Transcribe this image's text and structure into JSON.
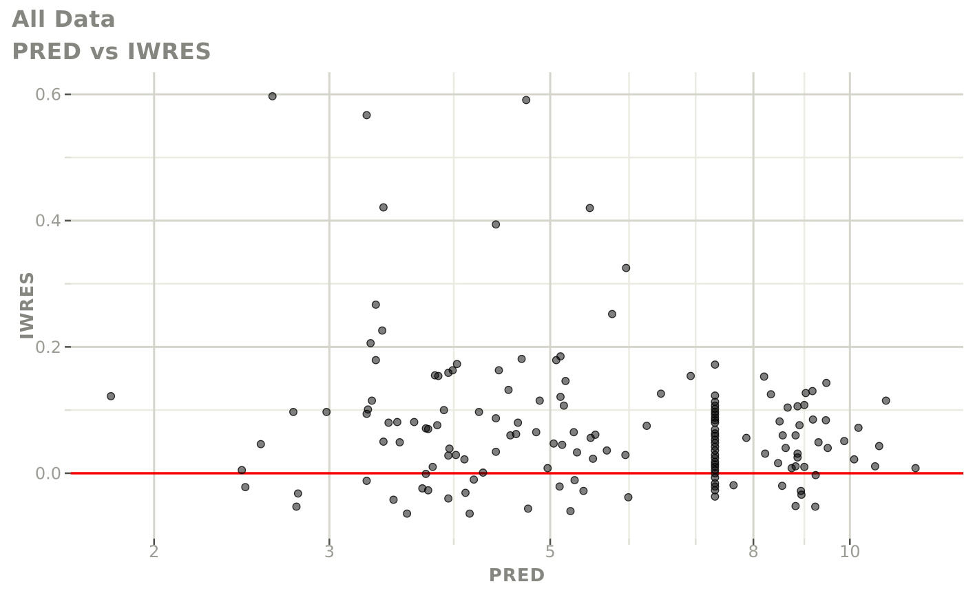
{
  "chart_data": {
    "type": "scatter",
    "title": "All Data",
    "subtitle": "PRED vs IWRES",
    "xlabel": "PRED",
    "ylabel": "IWRES",
    "x_scale": "log10",
    "xlim": [
      1.65,
      13.0
    ],
    "ylim": [
      -0.1035,
      0.635
    ],
    "grid": true,
    "legend": "none",
    "x_major_breaks": [
      2,
      3,
      5,
      8,
      10
    ],
    "x_tick_labels": [
      "2",
      "3",
      "5",
      "8",
      "10"
    ],
    "x_minor_breaks": [
      4,
      6,
      7,
      9
    ],
    "y_major_breaks": [
      0.0,
      0.2,
      0.4,
      0.6
    ],
    "y_tick_labels": [
      "0.0",
      "0.2",
      "0.4",
      "0.6"
    ],
    "y_minor_breaks": [
      0.1,
      0.3,
      0.5
    ],
    "reference_line": {
      "y": 0.0,
      "color": "#f80000"
    },
    "colors": {
      "background": "#ffffff",
      "title": "#868680",
      "tick_labels": "#9c9c94",
      "grid_major": "#d5d5cb",
      "grid_minor": "#ebebe1",
      "tick_major": "#4f4f49",
      "tick_minor": "#dfdfd4",
      "ref_line": "#f80000",
      "point": "#000000"
    },
    "point_style": {
      "radius": 5.3,
      "fill_opacity": 0.5,
      "stroke_opacity": 0.8,
      "stroke_width": 1.3
    },
    "points": [
      [
        2.63,
        0.597
      ],
      [
        4.73,
        0.591
      ],
      [
        3.27,
        0.567
      ],
      [
        3.4,
        0.421
      ],
      [
        5.48,
        0.42
      ],
      [
        4.41,
        0.394
      ],
      [
        5.96,
        0.325
      ],
      [
        3.34,
        0.267
      ],
      [
        1.81,
        0.122
      ],
      [
        2.76,
        0.097
      ],
      [
        2.98,
        0.097
      ],
      [
        2.56,
        0.046
      ],
      [
        2.45,
        0.005
      ],
      [
        2.47,
        -0.022
      ],
      [
        2.79,
        -0.032
      ],
      [
        2.78,
        -0.053
      ],
      [
        3.39,
        0.226
      ],
      [
        3.3,
        0.206
      ],
      [
        3.34,
        0.179
      ],
      [
        4.03,
        0.173
      ],
      [
        3.99,
        0.163
      ],
      [
        3.95,
        0.159
      ],
      [
        3.83,
        0.155
      ],
      [
        3.86,
        0.154
      ],
      [
        3.31,
        0.115
      ],
      [
        3.28,
        0.101
      ],
      [
        3.27,
        0.094
      ],
      [
        3.91,
        0.1
      ],
      [
        4.24,
        0.097
      ],
      [
        3.44,
        0.08
      ],
      [
        3.51,
        0.081
      ],
      [
        3.65,
        0.081
      ],
      [
        3.85,
        0.076
      ],
      [
        3.75,
        0.071
      ],
      [
        3.77,
        0.07
      ],
      [
        3.4,
        0.05
      ],
      [
        3.53,
        0.049
      ],
      [
        3.96,
        0.039
      ],
      [
        3.95,
        0.028
      ],
      [
        4.02,
        0.029
      ],
      [
        4.1,
        0.022
      ],
      [
        3.81,
        0.01
      ],
      [
        3.75,
        -0.001
      ],
      [
        3.27,
        -0.012
      ],
      [
        4.19,
        -0.01
      ],
      [
        4.28,
        0.001
      ],
      [
        3.72,
        -0.024
      ],
      [
        3.77,
        -0.027
      ],
      [
        4.11,
        -0.031
      ],
      [
        3.48,
        -0.042
      ],
      [
        3.95,
        -0.04
      ],
      [
        3.59,
        -0.064
      ],
      [
        4.15,
        -0.064
      ],
      [
        5.77,
        0.252
      ],
      [
        4.68,
        0.181
      ],
      [
        5.12,
        0.185
      ],
      [
        5.07,
        0.179
      ],
      [
        4.44,
        0.163
      ],
      [
        5.18,
        0.146
      ],
      [
        4.54,
        0.132
      ],
      [
        5.12,
        0.121
      ],
      [
        4.88,
        0.115
      ],
      [
        5.16,
        0.107
      ],
      [
        4.41,
        0.087
      ],
      [
        4.64,
        0.08
      ],
      [
        4.84,
        0.065
      ],
      [
        5.28,
        0.065
      ],
      [
        4.56,
        0.06
      ],
      [
        4.62,
        0.062
      ],
      [
        5.49,
        0.056
      ],
      [
        5.55,
        0.061
      ],
      [
        4.41,
        0.034
      ],
      [
        5.04,
        0.047
      ],
      [
        5.14,
        0.045
      ],
      [
        5.32,
        0.033
      ],
      [
        5.7,
        0.036
      ],
      [
        5.52,
        0.023
      ],
      [
        5.95,
        0.029
      ],
      [
        6.25,
        0.075
      ],
      [
        4.97,
        0.008
      ],
      [
        5.29,
        -0.011
      ],
      [
        5.11,
        -0.021
      ],
      [
        5.4,
        -0.028
      ],
      [
        5.99,
        -0.038
      ],
      [
        4.75,
        -0.056
      ],
      [
        5.24,
        -0.06
      ],
      [
        6.92,
        0.154
      ],
      [
        6.46,
        0.126
      ],
      [
        7.32,
        0.172
      ],
      [
        7.32,
        0.123
      ],
      [
        7.32,
        0.113
      ],
      [
        7.32,
        0.107
      ],
      [
        7.32,
        0.102
      ],
      [
        7.32,
        0.097
      ],
      [
        7.32,
        0.093
      ],
      [
        7.32,
        0.088
      ],
      [
        7.32,
        0.084
      ],
      [
        7.32,
        0.08
      ],
      [
        7.32,
        0.069
      ],
      [
        7.32,
        0.063
      ],
      [
        7.32,
        0.059
      ],
      [
        7.32,
        0.053
      ],
      [
        7.32,
        0.048
      ],
      [
        7.32,
        0.042
      ],
      [
        7.32,
        0.036
      ],
      [
        7.32,
        0.029
      ],
      [
        7.32,
        0.024
      ],
      [
        7.32,
        0.018
      ],
      [
        7.32,
        0.014
      ],
      [
        7.32,
        0.01
      ],
      [
        7.32,
        0.005
      ],
      [
        7.32,
        0.0
      ],
      [
        7.32,
        -0.007
      ],
      [
        7.32,
        -0.016
      ],
      [
        7.32,
        -0.021
      ],
      [
        7.32,
        -0.027
      ],
      [
        7.32,
        -0.037
      ],
      [
        7.64,
        -0.019
      ],
      [
        7.87,
        0.056
      ],
      [
        8.2,
        0.153
      ],
      [
        8.33,
        0.125
      ],
      [
        8.66,
        0.104
      ],
      [
        8.86,
        0.106
      ],
      [
        9.0,
        0.108
      ],
      [
        9.03,
        0.127
      ],
      [
        9.17,
        0.13
      ],
      [
        9.47,
        0.143
      ],
      [
        8.5,
        0.082
      ],
      [
        8.9,
        0.076
      ],
      [
        9.18,
        0.085
      ],
      [
        9.46,
        0.084
      ],
      [
        8.56,
        0.06
      ],
      [
        8.82,
        0.06
      ],
      [
        8.62,
        0.04
      ],
      [
        8.22,
        0.031
      ],
      [
        8.86,
        0.031
      ],
      [
        8.86,
        0.025
      ],
      [
        8.47,
        0.016
      ],
      [
        8.74,
        0.008
      ],
      [
        8.82,
        0.011
      ],
      [
        9.0,
        0.01
      ],
      [
        9.24,
        -0.003
      ],
      [
        8.55,
        -0.02
      ],
      [
        8.93,
        -0.028
      ],
      [
        8.94,
        -0.034
      ],
      [
        8.82,
        -0.052
      ],
      [
        9.23,
        -0.053
      ],
      [
        10.87,
        0.115
      ],
      [
        10.2,
        0.072
      ],
      [
        9.3,
        0.049
      ],
      [
        9.5,
        0.04
      ],
      [
        9.87,
        0.051
      ],
      [
        10.7,
        0.043
      ],
      [
        10.1,
        0.022
      ],
      [
        10.6,
        0.011
      ],
      [
        11.64,
        0.008
      ]
    ]
  }
}
